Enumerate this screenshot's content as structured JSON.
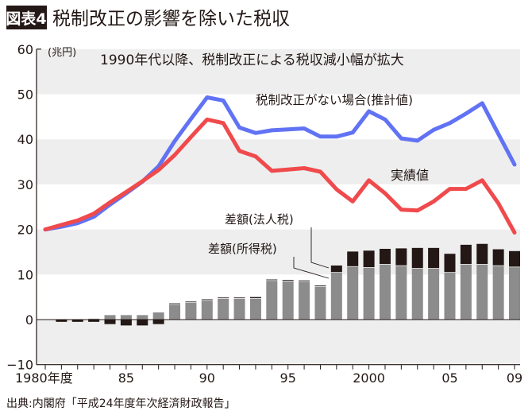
{
  "header": {
    "badge": "図表4",
    "title": "税制改正の影響を除いた税収"
  },
  "source": "出典:内閣府「平成24年度年次経済財政報告」",
  "colors": {
    "estimate": "#6173f4",
    "actual": "#f04a4c",
    "income_diff": "#8c8c8c",
    "corporate_diff": "#231815",
    "band": "#eeeeee"
  },
  "chart_data": {
    "type": "line+stacked-bar",
    "title": "1990年代以降、税制改正による税収減小幅が拡大",
    "ylabel": "(兆円)",
    "ylim": [
      -10,
      60
    ],
    "yticks": [
      -10,
      0,
      10,
      20,
      30,
      40,
      50,
      60
    ],
    "grid": "alternating horizontal bands",
    "x": [
      1980,
      1981,
      1982,
      1983,
      1984,
      1985,
      1986,
      1987,
      1988,
      1989,
      1990,
      1991,
      1992,
      1993,
      1994,
      1995,
      1996,
      1997,
      1998,
      1999,
      2000,
      2001,
      2002,
      2003,
      2004,
      2005,
      2006,
      2007,
      2008,
      2009
    ],
    "xtick_labels": [
      {
        "year": 1980,
        "label": "1980年度"
      },
      {
        "year": 1985,
        "label": "85"
      },
      {
        "year": 1990,
        "label": "90"
      },
      {
        "year": 1995,
        "label": "95"
      },
      {
        "year": 2000,
        "label": "2000"
      },
      {
        "year": 2005,
        "label": "05"
      },
      {
        "year": 2009,
        "label": "09"
      }
    ],
    "series": [
      {
        "name": "税制改正がない場合(推計値)",
        "type": "line",
        "color_key": "estimate",
        "values": [
          20.0,
          20.6,
          21.4,
          22.8,
          25.5,
          28.0,
          30.6,
          34.0,
          39.6,
          44.5,
          49.3,
          48.6,
          42.6,
          41.4,
          42.0,
          42.2,
          42.4,
          40.6,
          40.6,
          41.5,
          46.2,
          44.4,
          40.2,
          39.7,
          42.1,
          43.6,
          45.7,
          48.0,
          41.2,
          34.4
        ]
      },
      {
        "name": "実績値",
        "type": "line",
        "color_key": "actual",
        "values": [
          20.0,
          21.0,
          22.0,
          23.5,
          26.0,
          28.3,
          30.7,
          33.2,
          36.5,
          40.5,
          44.4,
          43.6,
          37.4,
          36.2,
          33.0,
          33.3,
          33.6,
          32.8,
          28.9,
          26.2,
          30.9,
          28.0,
          24.4,
          24.2,
          26.2,
          29.0,
          29.0,
          30.9,
          25.8,
          19.3
        ]
      },
      {
        "name": "差額(所得税)",
        "type": "bar",
        "color_key": "income_diff",
        "values": [
          0,
          0,
          0,
          0.2,
          1.0,
          1.0,
          1.0,
          1.6,
          3.3,
          3.7,
          4.2,
          4.6,
          4.6,
          4.6,
          8.6,
          8.5,
          8.4,
          7.3,
          10.4,
          11.7,
          11.5,
          12.2,
          11.9,
          11.3,
          11.3,
          10.4,
          12.2,
          12.2,
          11.9,
          11.6
        ]
      },
      {
        "name": "差額(法人税)",
        "type": "bar",
        "color_key": "corporate_diff",
        "values": [
          0,
          -0.5,
          -0.5,
          -0.5,
          -1.0,
          -1.3,
          -1.3,
          -1.0,
          0.3,
          0.3,
          0.3,
          0.3,
          0.3,
          0.4,
          0.3,
          0.3,
          0.3,
          0.3,
          1.6,
          3.4,
          3.8,
          3.5,
          3.9,
          4.6,
          4.6,
          4.2,
          4.4,
          4.6,
          3.7,
          3.6
        ]
      }
    ]
  }
}
